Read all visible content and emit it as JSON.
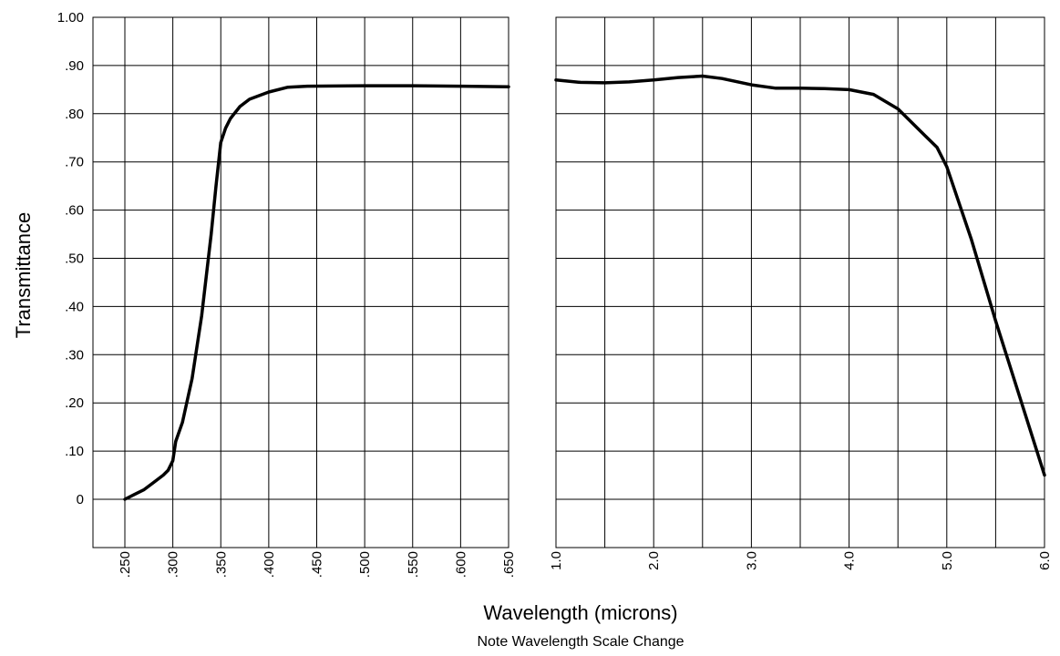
{
  "chart_data": {
    "type": "line",
    "ylabel": "Transmittance",
    "xlabel": "Wavelength (microns)",
    "note": "Note Wavelength Scale Change",
    "grid": true,
    "ylim": [
      0,
      1.0
    ],
    "yticks": [
      "0",
      ".10",
      ".20",
      ".30",
      ".40",
      ".50",
      ".60",
      ".70",
      ".80",
      ".90",
      "1.00"
    ],
    "panels": [
      {
        "xlim": [
          0.25,
          0.65
        ],
        "xticks": [
          ".250",
          ".300",
          ".350",
          ".400",
          ".450",
          ".500",
          ".550",
          ".600",
          ".650"
        ],
        "gridlines_x": [
          0.25,
          0.3,
          0.35,
          0.4,
          0.45,
          0.5,
          0.55,
          0.6,
          0.65
        ],
        "series": [
          {
            "x": [
              0.25,
              0.26,
              0.27,
              0.28,
              0.29,
              0.295,
              0.3,
              0.303,
              0.31,
              0.32,
              0.33,
              0.34,
              0.345,
              0.35,
              0.355,
              0.36,
              0.37,
              0.38,
              0.4,
              0.42,
              0.44,
              0.5,
              0.55,
              0.6,
              0.65
            ],
            "y": [
              0.0,
              0.01,
              0.02,
              0.035,
              0.05,
              0.06,
              0.08,
              0.12,
              0.16,
              0.25,
              0.38,
              0.55,
              0.65,
              0.74,
              0.77,
              0.79,
              0.815,
              0.83,
              0.845,
              0.855,
              0.857,
              0.858,
              0.858,
              0.857,
              0.856
            ]
          }
        ]
      },
      {
        "xlim": [
          1.0,
          6.0
        ],
        "xticks": [
          "1.0",
          "2.0",
          "3.0",
          "4.0",
          "5.0",
          "6.0"
        ],
        "gridlines_x": [
          1.0,
          1.5,
          2.0,
          2.5,
          3.0,
          3.5,
          4.0,
          4.5,
          5.0,
          5.5,
          6.0
        ],
        "series": [
          {
            "x": [
              1.0,
              1.25,
              1.5,
              1.75,
              2.0,
              2.25,
              2.5,
              2.7,
              3.0,
              3.25,
              3.5,
              3.75,
              4.0,
              4.25,
              4.5,
              4.75,
              4.9,
              5.0,
              5.25,
              5.5,
              5.75,
              6.0
            ],
            "y": [
              0.87,
              0.865,
              0.864,
              0.866,
              0.87,
              0.875,
              0.878,
              0.873,
              0.86,
              0.853,
              0.853,
              0.852,
              0.85,
              0.84,
              0.81,
              0.76,
              0.73,
              0.69,
              0.54,
              0.37,
              0.21,
              0.05
            ]
          }
        ]
      }
    ]
  }
}
